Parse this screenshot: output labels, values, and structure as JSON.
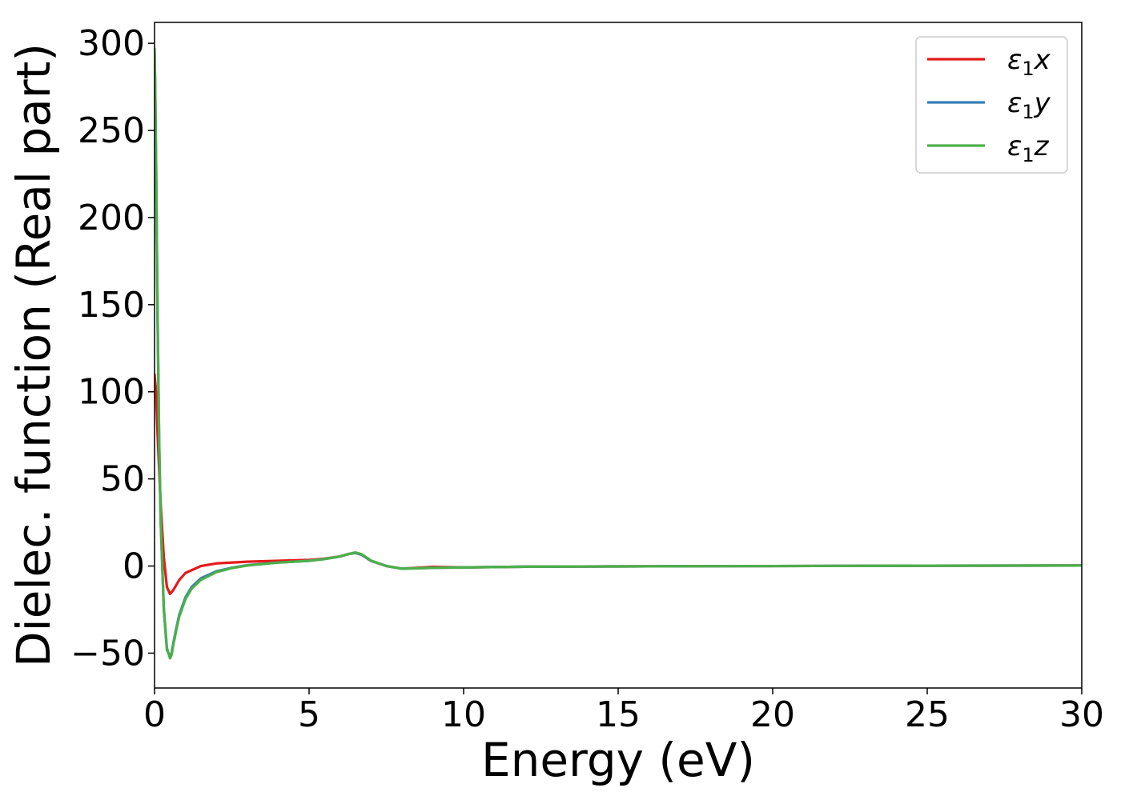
{
  "chart_data": {
    "type": "line",
    "title": "",
    "xlabel": "Energy (eV)",
    "ylabel": "Dielec. function (Real part)",
    "xlim": [
      0,
      30
    ],
    "ylim": [
      -70,
      312
    ],
    "xticks": [
      0,
      5,
      10,
      15,
      20,
      25,
      30
    ],
    "xtick_labels": [
      "0",
      "5",
      "10",
      "15",
      "20",
      "25",
      "30"
    ],
    "yticks": [
      -50,
      0,
      50,
      100,
      150,
      200,
      250,
      300
    ],
    "ytick_labels": [
      "−50",
      "0",
      "50",
      "100",
      "150",
      "200",
      "250",
      "300"
    ],
    "grid": false,
    "legend_position": "top-right",
    "series": [
      {
        "name": "ε1x",
        "legend_main": "ε",
        "legend_sub": "1",
        "legend_var": "x",
        "color": "#e41a1c",
        "x": [
          0,
          0.05,
          0.1,
          0.2,
          0.3,
          0.4,
          0.5,
          0.6,
          0.8,
          1.0,
          1.5,
          2,
          3,
          4,
          5,
          5.5,
          6,
          6.3,
          6.5,
          6.7,
          7,
          7.5,
          8,
          9,
          10,
          12,
          15,
          20,
          25,
          30
        ],
        "y": [
          110,
          100,
          75,
          35,
          5,
          -12,
          -16,
          -14,
          -8,
          -4,
          0,
          1.5,
          2.5,
          3,
          3.5,
          4.2,
          5.5,
          7,
          7.5,
          6.5,
          3,
          0,
          -1.5,
          -0.5,
          -0.8,
          -0.4,
          -0.2,
          0,
          0.2,
          0.3
        ]
      },
      {
        "name": "ε1y",
        "legend_main": "ε",
        "legend_sub": "1",
        "legend_var": "y",
        "color": "#377eb8",
        "x": [
          0,
          0.02,
          0.05,
          0.1,
          0.15,
          0.2,
          0.3,
          0.4,
          0.5,
          0.55,
          0.6,
          0.7,
          0.8,
          1.0,
          1.2,
          1.5,
          2,
          2.5,
          3,
          4,
          5,
          5.5,
          6,
          6.3,
          6.5,
          6.7,
          7,
          7.5,
          8,
          9,
          10,
          12,
          15,
          20,
          25,
          30
        ],
        "y": [
          295,
          275,
          230,
          140,
          70,
          25,
          -25,
          -48,
          -52,
          -50,
          -45,
          -36,
          -28,
          -18,
          -12,
          -7,
          -3,
          -1,
          0.5,
          2,
          3,
          4,
          5.5,
          7,
          7.5,
          6.5,
          3,
          0,
          -1.5,
          -1,
          -0.8,
          -0.4,
          -0.2,
          0,
          0.2,
          0.3
        ]
      },
      {
        "name": "ε1z",
        "legend_main": "ε",
        "legend_sub": "1",
        "legend_var": "z",
        "color": "#4daf4a",
        "x": [
          0,
          0.02,
          0.05,
          0.1,
          0.15,
          0.2,
          0.3,
          0.4,
          0.5,
          0.55,
          0.6,
          0.7,
          0.8,
          1.0,
          1.2,
          1.5,
          2,
          2.5,
          3,
          4,
          5,
          5.5,
          6,
          6.3,
          6.5,
          6.7,
          7,
          7.5,
          8,
          9,
          10,
          12,
          15,
          20,
          25,
          30
        ],
        "y": [
          297,
          277,
          232,
          142,
          72,
          26,
          -24,
          -47,
          -53,
          -51,
          -46,
          -37,
          -29,
          -19,
          -13,
          -8,
          -3.5,
          -1.2,
          0.3,
          2,
          3,
          4,
          5.5,
          7,
          7.8,
          6.8,
          3.2,
          0,
          -1.5,
          -1,
          -0.8,
          -0.4,
          -0.2,
          0,
          0.2,
          0.3
        ]
      }
    ]
  }
}
